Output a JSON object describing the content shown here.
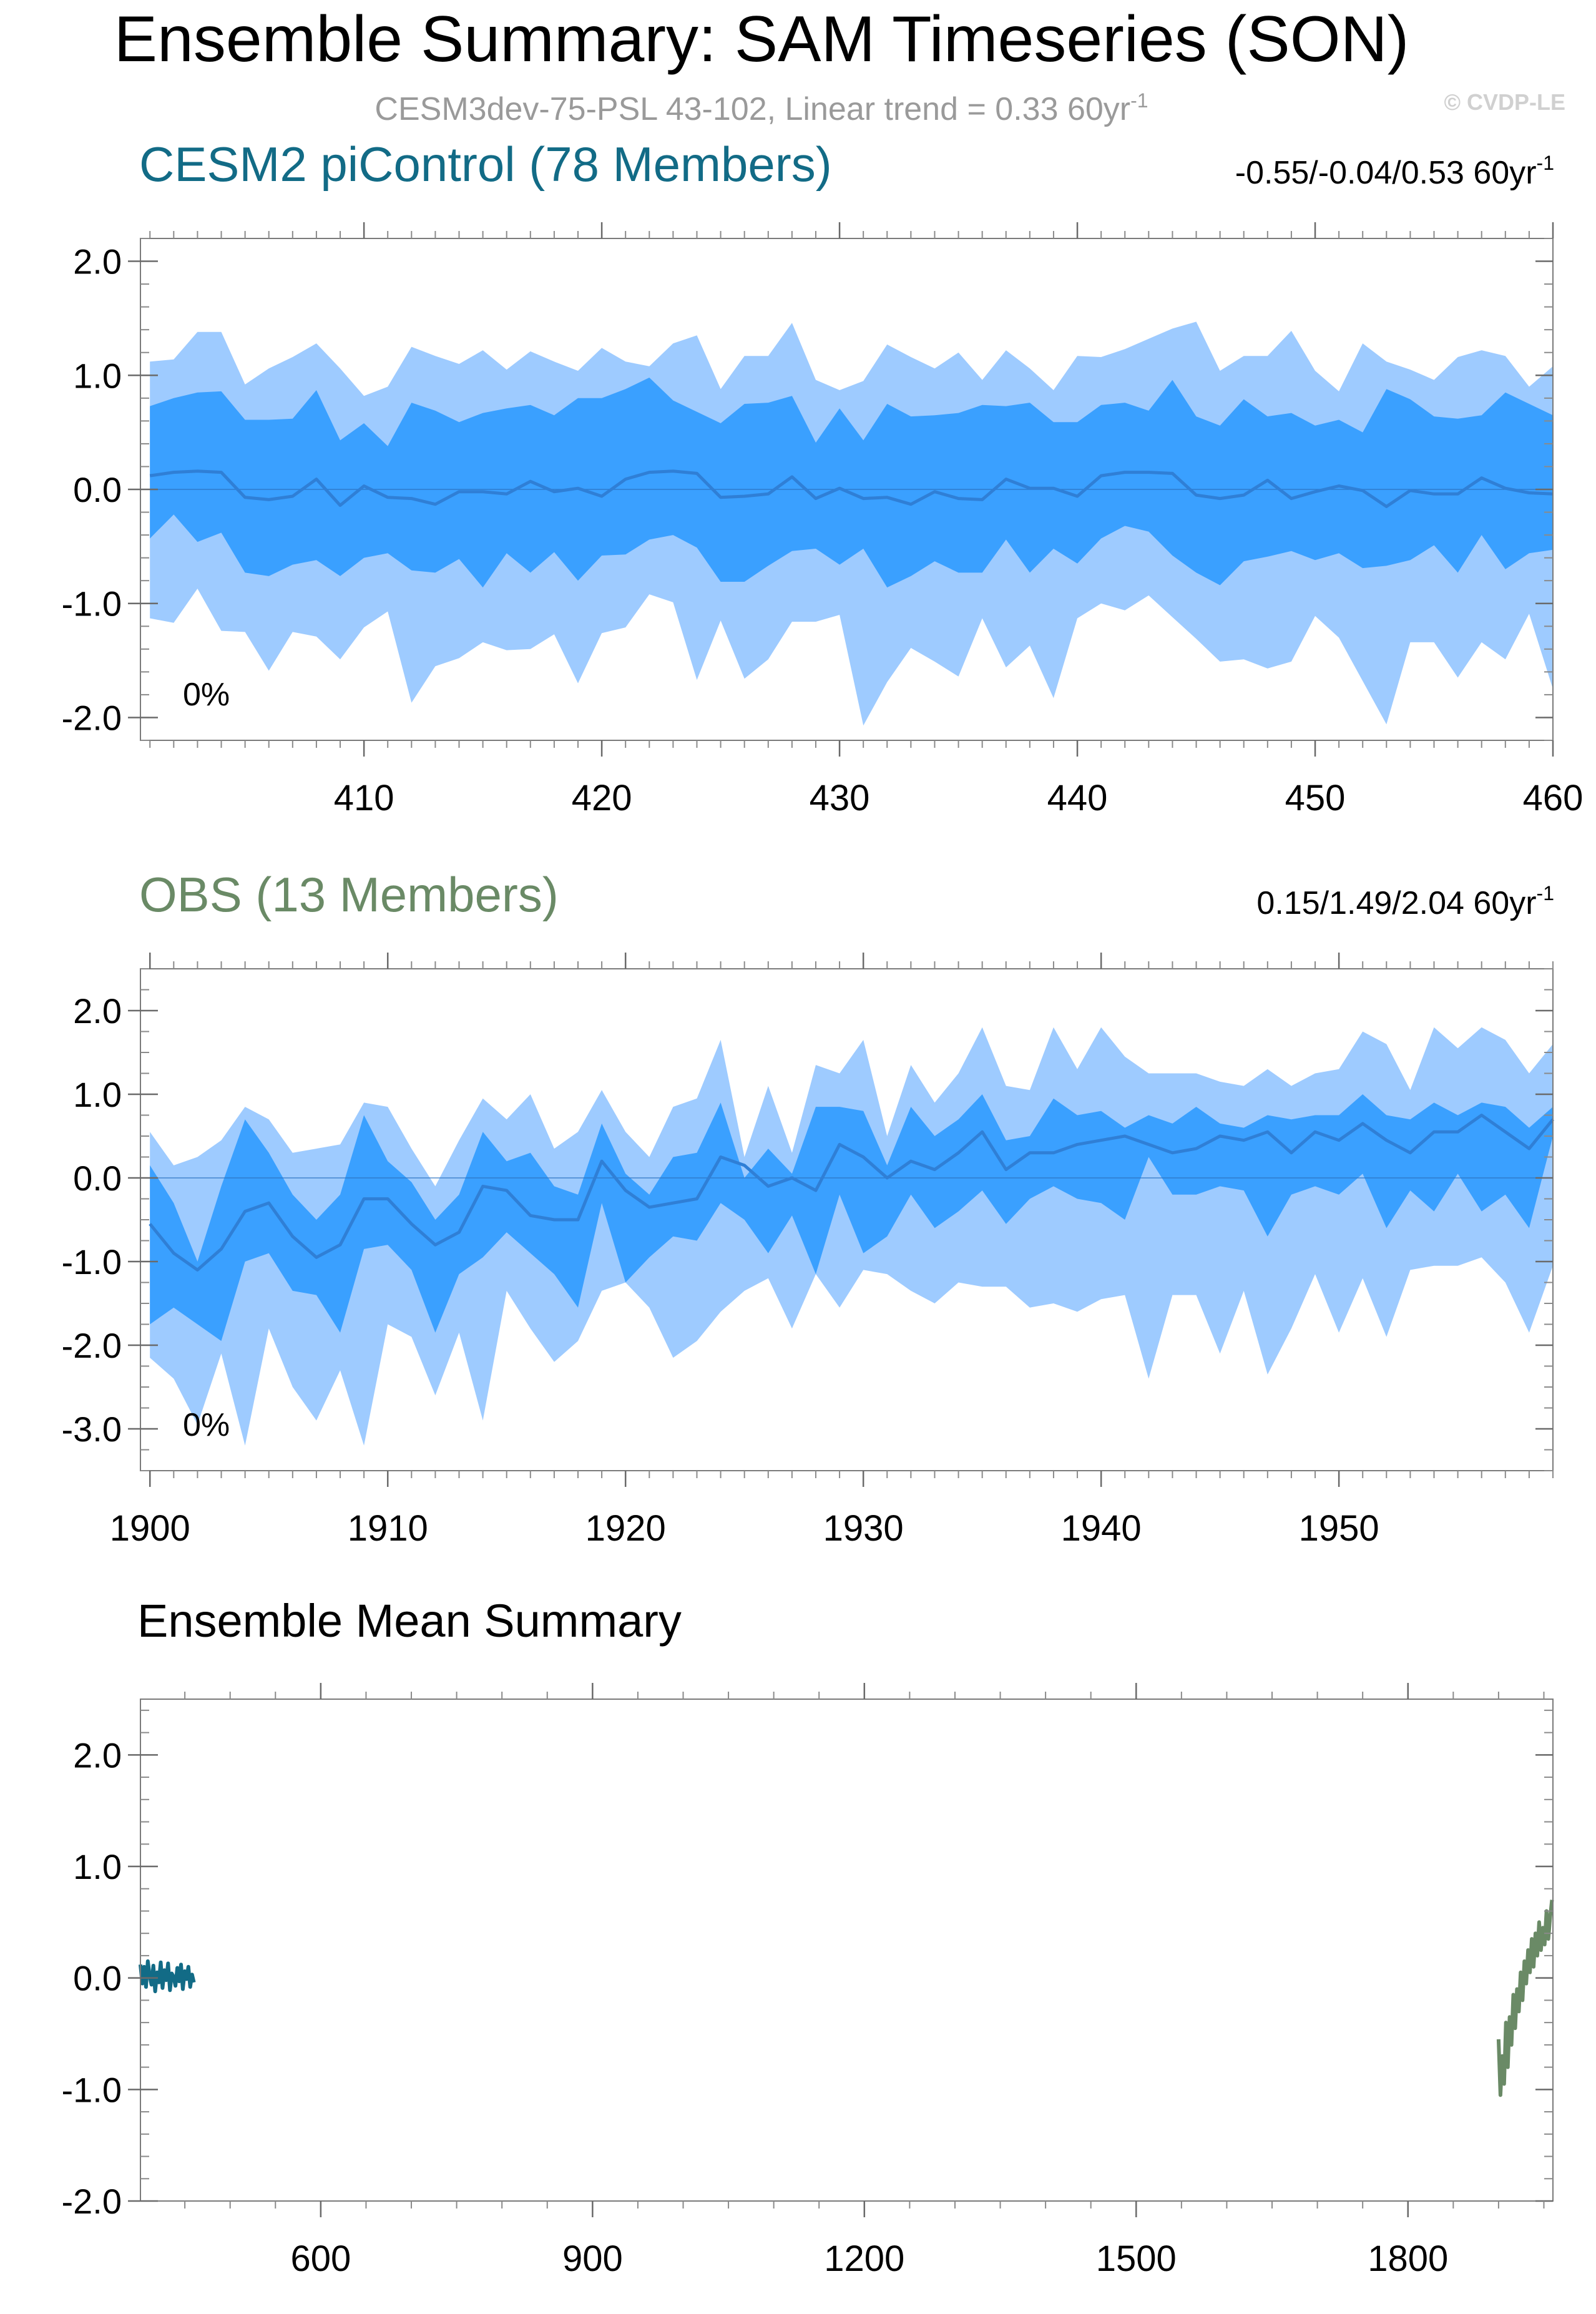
{
  "figure": {
    "title": "Ensemble Summary: SAM Timeseries (SON)",
    "subtitle": "CESM3dev-75-PSL 43-102, Linear trend = 0.33 60yr",
    "subtitle_sup": "-1",
    "watermark": "© CVDP-LE"
  },
  "colors": {
    "outer_band": "#9ecbff",
    "inner_band": "#3aa0ff",
    "mean_line": "#2f7fd6",
    "cesm_title": "#126b86",
    "obs_title": "#6a8a66",
    "cesm_mean": "#126b86",
    "obs_mean": "#6a8a66",
    "subtitle": "#9a9a9a",
    "watermark": "#d0d0d0"
  },
  "chart_data": [
    {
      "type": "area",
      "title": "CESM2 piControl (78 Members)",
      "trend_label": "-0.55/-0.04/0.53 60yr",
      "trend_sup": "-1",
      "percent_label": "0%",
      "xlim": [
        400.6,
        460
      ],
      "ylim": [
        -2.2,
        2.2
      ],
      "yticks": [
        2.0,
        1.0,
        0.0,
        -1.0,
        -2.0
      ],
      "ytick_labels": [
        "2.0",
        "1.0",
        "0.0",
        "-1.0",
        "-2.0"
      ],
      "xticks": [
        410,
        420,
        430,
        440,
        450,
        460
      ],
      "xtick_labels": [
        "410",
        "420",
        "430",
        "440",
        "450",
        "460"
      ],
      "x": [
        401,
        402,
        403,
        404,
        405,
        406,
        407,
        408,
        409,
        410,
        411,
        412,
        413,
        414,
        415,
        416,
        417,
        418,
        419,
        420,
        421,
        422,
        423,
        424,
        425,
        426,
        427,
        428,
        429,
        430,
        431,
        432,
        433,
        434,
        435,
        436,
        437,
        438,
        439,
        440,
        441,
        442,
        443,
        444,
        445,
        446,
        447,
        448,
        449,
        450,
        451,
        452,
        453,
        454,
        455,
        456,
        457,
        458,
        459,
        460
      ],
      "outer_upper": [
        1.12,
        1.14,
        1.38,
        1.38,
        0.92,
        1.06,
        1.16,
        1.28,
        1.06,
        0.82,
        0.9,
        1.25,
        1.17,
        1.1,
        1.22,
        1.05,
        1.21,
        1.12,
        1.04,
        1.24,
        1.12,
        1.08,
        1.28,
        1.35,
        0.88,
        1.17,
        1.17,
        1.46,
        0.96,
        0.87,
        0.95,
        1.27,
        1.16,
        1.06,
        1.2,
        0.96,
        1.22,
        1.06,
        0.87,
        1.17,
        1.16,
        1.23,
        1.32,
        1.41,
        1.47,
        1.04,
        1.17,
        1.17,
        1.39,
        1.04,
        0.86,
        1.28,
        1.12,
        1.05,
        0.96,
        1.16,
        1.22,
        1.17,
        0.9,
        1.08
      ],
      "inner_upper": [
        0.73,
        0.8,
        0.85,
        0.86,
        0.61,
        0.61,
        0.62,
        0.87,
        0.43,
        0.58,
        0.38,
        0.76,
        0.69,
        0.59,
        0.67,
        0.71,
        0.74,
        0.65,
        0.8,
        0.8,
        0.88,
        0.98,
        0.78,
        0.68,
        0.58,
        0.75,
        0.76,
        0.82,
        0.41,
        0.71,
        0.43,
        0.75,
        0.64,
        0.65,
        0.67,
        0.74,
        0.73,
        0.76,
        0.59,
        0.59,
        0.74,
        0.76,
        0.69,
        0.96,
        0.64,
        0.56,
        0.79,
        0.64,
        0.67,
        0.56,
        0.61,
        0.5,
        0.88,
        0.79,
        0.64,
        0.62,
        0.65,
        0.85,
        0.75,
        0.65
      ],
      "ensemble_mean": [
        0.12,
        0.15,
        0.16,
        0.15,
        -0.07,
        -0.09,
        -0.06,
        0.09,
        -0.14,
        0.03,
        -0.07,
        -0.08,
        -0.13,
        -0.02,
        -0.02,
        -0.04,
        0.07,
        -0.02,
        0.01,
        -0.06,
        0.09,
        0.15,
        0.16,
        0.14,
        -0.07,
        -0.06,
        -0.04,
        0.11,
        -0.08,
        0.01,
        -0.08,
        -0.07,
        -0.13,
        -0.02,
        -0.08,
        -0.09,
        0.09,
        0.01,
        0.01,
        -0.06,
        0.12,
        0.15,
        0.15,
        0.14,
        -0.05,
        -0.08,
        -0.05,
        0.08,
        -0.08,
        -0.02,
        0.03,
        -0.01,
        -0.15,
        -0.01,
        -0.04,
        -0.04,
        0.1,
        0.01,
        -0.03,
        -0.04
      ],
      "inner_lower": [
        -0.43,
        -0.22,
        -0.46,
        -0.38,
        -0.73,
        -0.76,
        -0.66,
        -0.62,
        -0.76,
        -0.6,
        -0.56,
        -0.71,
        -0.73,
        -0.61,
        -0.86,
        -0.56,
        -0.73,
        -0.55,
        -0.8,
        -0.58,
        -0.57,
        -0.44,
        -0.4,
        -0.51,
        -0.81,
        -0.81,
        -0.67,
        -0.54,
        -0.52,
        -0.66,
        -0.52,
        -0.86,
        -0.76,
        -0.63,
        -0.73,
        -0.73,
        -0.44,
        -0.73,
        -0.52,
        -0.65,
        -0.43,
        -0.32,
        -0.37,
        -0.58,
        -0.73,
        -0.84,
        -0.63,
        -0.59,
        -0.54,
        -0.62,
        -0.56,
        -0.69,
        -0.67,
        -0.62,
        -0.49,
        -0.73,
        -0.4,
        -0.7,
        -0.56,
        -0.53
      ],
      "outer_lower": [
        -1.13,
        -1.17,
        -0.87,
        -1.24,
        -1.25,
        -1.59,
        -1.25,
        -1.29,
        -1.49,
        -1.21,
        -1.07,
        -1.87,
        -1.55,
        -1.48,
        -1.34,
        -1.41,
        -1.4,
        -1.27,
        -1.7,
        -1.26,
        -1.21,
        -0.92,
        -0.99,
        -1.67,
        -1.15,
        -1.66,
        -1.49,
        -1.16,
        -1.16,
        -1.1,
        -2.07,
        -1.69,
        -1.39,
        -1.51,
        -1.64,
        -1.13,
        -1.56,
        -1.37,
        -1.83,
        -1.13,
        -1.0,
        -1.06,
        -0.93,
        -1.12,
        -1.31,
        -1.51,
        -1.49,
        -1.57,
        -1.51,
        -1.11,
        -1.3,
        -1.68,
        -2.06,
        -1.34,
        -1.34,
        -1.65,
        -1.34,
        -1.49,
        -1.09,
        -1.75
      ]
    },
    {
      "type": "area",
      "title": "OBS (13 Members)",
      "trend_label": "0.15/1.49/2.04 60yr",
      "trend_sup": "-1",
      "percent_label": "0%",
      "xlim": [
        1899.6,
        1959
      ],
      "ylim": [
        -3.5,
        2.5
      ],
      "yticks": [
        2.0,
        1.0,
        0.0,
        -1.0,
        -2.0,
        -3.0
      ],
      "ytick_labels": [
        "2.0",
        "1.0",
        "0.0",
        "-1.0",
        "-2.0",
        "-3.0"
      ],
      "xticks": [
        1900,
        1910,
        1920,
        1930,
        1940,
        1950
      ],
      "xtick_labels": [
        "1900",
        "1910",
        "1920",
        "1930",
        "1940",
        "1950"
      ],
      "x": [
        1900,
        1901,
        1902,
        1903,
        1904,
        1905,
        1906,
        1907,
        1908,
        1909,
        1910,
        1911,
        1912,
        1913,
        1914,
        1915,
        1916,
        1917,
        1918,
        1919,
        1920,
        1921,
        1922,
        1923,
        1924,
        1925,
        1926,
        1927,
        1928,
        1929,
        1930,
        1931,
        1932,
        1933,
        1934,
        1935,
        1936,
        1937,
        1938,
        1939,
        1940,
        1941,
        1942,
        1943,
        1944,
        1945,
        1946,
        1947,
        1948,
        1949,
        1950,
        1951,
        1952,
        1953,
        1954,
        1955,
        1956,
        1957,
        1958,
        1959
      ],
      "outer_upper": [
        0.55,
        0.15,
        0.25,
        0.45,
        0.85,
        0.7,
        0.3,
        0.35,
        0.4,
        0.9,
        0.85,
        0.35,
        -0.1,
        0.45,
        0.95,
        0.7,
        1.0,
        0.35,
        0.55,
        1.05,
        0.55,
        0.25,
        0.85,
        0.95,
        1.65,
        0.25,
        1.1,
        0.3,
        1.35,
        1.25,
        1.65,
        0.5,
        1.35,
        0.9,
        1.25,
        1.8,
        1.1,
        1.05,
        1.8,
        1.3,
        1.8,
        1.45,
        1.25,
        1.25,
        1.25,
        1.15,
        1.1,
        1.3,
        1.1,
        1.25,
        1.3,
        1.75,
        1.6,
        1.05,
        1.8,
        1.55,
        1.8,
        1.65,
        1.25,
        1.6
      ],
      "inner_upper": [
        0.15,
        -0.3,
        -1.0,
        -0.1,
        0.7,
        0.3,
        -0.2,
        -0.5,
        -0.2,
        0.75,
        0.2,
        -0.05,
        -0.5,
        -0.2,
        0.55,
        0.2,
        0.3,
        -0.1,
        -0.2,
        0.65,
        0.05,
        -0.2,
        0.25,
        0.3,
        0.9,
        0.0,
        0.35,
        0.05,
        0.85,
        0.85,
        0.8,
        0.15,
        0.85,
        0.5,
        0.7,
        1.0,
        0.45,
        0.5,
        0.95,
        0.75,
        0.8,
        0.6,
        0.75,
        0.65,
        0.85,
        0.65,
        0.6,
        0.75,
        0.7,
        0.75,
        0.75,
        1.0,
        0.75,
        0.7,
        0.9,
        0.75,
        0.9,
        0.85,
        0.6,
        0.85
      ],
      "ensemble_mean": [
        -0.55,
        -0.9,
        -1.1,
        -0.85,
        -0.4,
        -0.3,
        -0.7,
        -0.95,
        -0.8,
        -0.25,
        -0.25,
        -0.55,
        -0.8,
        -0.65,
        -0.1,
        -0.15,
        -0.45,
        -0.5,
        -0.5,
        0.2,
        -0.15,
        -0.35,
        -0.3,
        -0.25,
        0.25,
        0.15,
        -0.1,
        0.0,
        -0.15,
        0.4,
        0.25,
        0.0,
        0.2,
        0.1,
        0.3,
        0.55,
        0.1,
        0.3,
        0.3,
        0.4,
        0.45,
        0.5,
        0.4,
        0.3,
        0.35,
        0.5,
        0.45,
        0.55,
        0.3,
        0.55,
        0.45,
        0.65,
        0.45,
        0.3,
        0.55,
        0.55,
        0.75,
        0.55,
        0.35,
        0.7
      ],
      "inner_lower": [
        -1.75,
        -1.55,
        -1.75,
        -1.95,
        -1.0,
        -0.9,
        -1.35,
        -1.4,
        -1.85,
        -0.85,
        -0.8,
        -1.1,
        -1.85,
        -1.15,
        -0.95,
        -0.65,
        -0.9,
        -1.15,
        -1.55,
        -0.3,
        -1.25,
        -0.95,
        -0.7,
        -0.75,
        -0.3,
        -0.5,
        -0.9,
        -0.45,
        -1.15,
        -0.2,
        -0.9,
        -0.7,
        -0.2,
        -0.6,
        -0.4,
        -0.15,
        -0.55,
        -0.25,
        -0.1,
        -0.25,
        -0.3,
        -0.5,
        0.25,
        -0.2,
        -0.2,
        -0.1,
        -0.15,
        -0.7,
        -0.2,
        -0.1,
        -0.2,
        0.05,
        -0.6,
        -0.15,
        -0.4,
        0.05,
        -0.4,
        -0.2,
        -0.6,
        0.5
      ],
      "outer_lower": [
        -2.15,
        -2.4,
        -2.95,
        -2.1,
        -3.2,
        -1.8,
        -2.5,
        -2.9,
        -2.3,
        -3.2,
        -1.75,
        -1.9,
        -2.6,
        -1.85,
        -2.9,
        -1.35,
        -1.8,
        -2.2,
        -1.95,
        -1.35,
        -1.25,
        -1.55,
        -2.15,
        -1.95,
        -1.6,
        -1.35,
        -1.2,
        -1.8,
        -1.15,
        -1.55,
        -1.1,
        -1.15,
        -1.35,
        -1.5,
        -1.25,
        -1.3,
        -1.3,
        -1.55,
        -1.5,
        -1.6,
        -1.45,
        -1.4,
        -2.4,
        -1.4,
        -1.4,
        -2.1,
        -1.35,
        -2.35,
        -1.8,
        -1.15,
        -1.85,
        -1.2,
        -1.9,
        -1.1,
        -1.05,
        -1.05,
        -0.95,
        -1.25,
        -1.85,
        -1.05
      ]
    },
    {
      "type": "line",
      "title": "Ensemble Mean Summary",
      "xlim": [
        401,
        1960
      ],
      "ylim": [
        -2.0,
        2.5
      ],
      "yticks": [
        2.0,
        1.0,
        0.0,
        -1.0,
        -2.0
      ],
      "ytick_labels": [
        "2.0",
        "1.0",
        "0.0",
        "-1.0",
        "-2.0"
      ],
      "xticks": [
        600,
        900,
        1200,
        1500,
        1800
      ],
      "xtick_labels": [
        "600",
        "900",
        "1200",
        "1500",
        "1800"
      ],
      "series": [
        {
          "name": "CESM2 piControl",
          "x_start": 401,
          "x_end": 460,
          "values": [
            0.12,
            -0.05,
            0.1,
            -0.08,
            0.15,
            0.02,
            -0.06,
            0.11,
            -0.12,
            0.05,
            -0.04,
            0.14,
            -0.09,
            0.07,
            -0.02,
            0.13,
            -0.11,
            0.04,
            0.01,
            -0.07,
            0.09,
            -0.03,
            0.12,
            -0.1,
            0.06,
            -0.01,
            0.1,
            -0.08,
            0.03,
            -0.04
          ]
        },
        {
          "name": "OBS",
          "x_start": 1900,
          "x_end": 1959,
          "values": [
            -0.55,
            -1.05,
            -0.7,
            -0.95,
            -0.4,
            -0.8,
            -0.35,
            -0.6,
            -0.15,
            -0.45,
            -0.1,
            -0.3,
            0.05,
            -0.2,
            0.15,
            -0.05,
            0.25,
            0.05,
            0.35,
            0.1,
            0.4,
            0.2,
            0.5,
            0.25,
            0.45,
            0.3,
            0.6,
            0.35,
            0.55,
            0.7
          ]
        }
      ]
    }
  ]
}
